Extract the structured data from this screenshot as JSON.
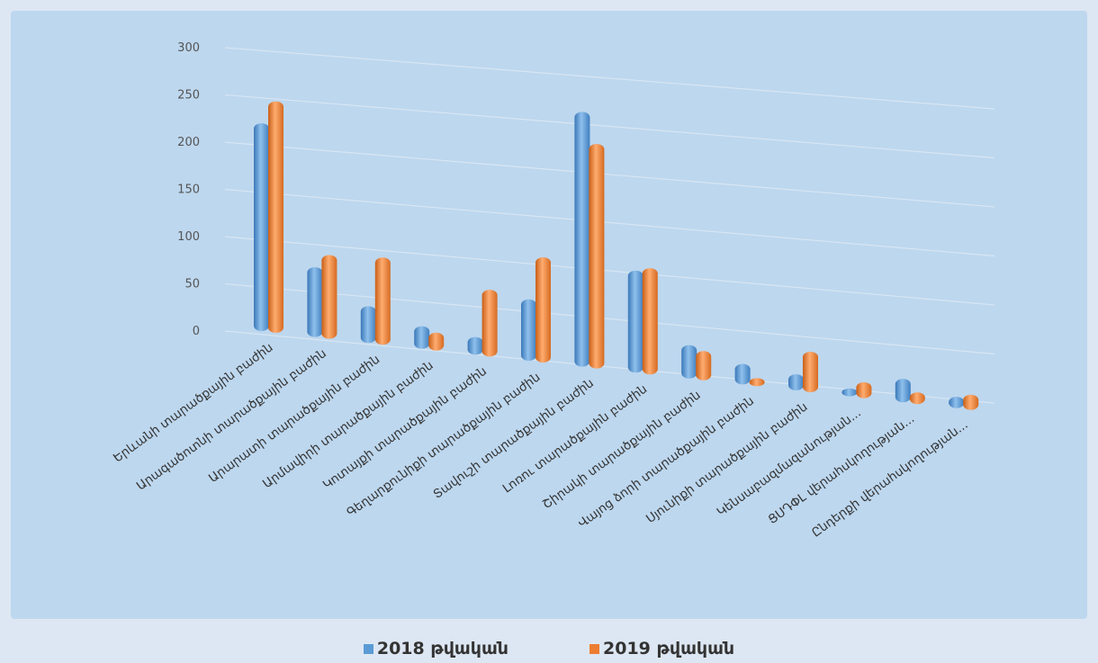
{
  "chart_data": {
    "type": "bar",
    "categories": [
      "Երևանի տարածքային բաժին",
      "Արագածոտնի տարածքային բաժին",
      "Արարատի տարածքային բաժին",
      "Արմավիրի տարածքային բաժին",
      "Կոտայքի տարածքային բաժին",
      "Գեղարքունիքի տարածքային բաժին",
      "Տավուշի տարածքային բաժին",
      "Լոռու տարածքային բաժին",
      "Շիրակի տարածքային բաժին",
      "Վայոց ձորի տարածքային բաժին",
      "Սյունիքի տարածքային բաժին",
      "Կենսաբազմազանության...",
      "ՑՍԴՓԼ վերահսկողության...",
      "Ընդերքի վերահսկողության..."
    ],
    "series": [
      {
        "name": "2018 թվական",
        "color": "#5b9bd5",
        "values": [
          220,
          75,
          40,
          25,
          20,
          70,
          295,
          120,
          40,
          25,
          20,
          10,
          30,
          15
        ]
      },
      {
        "name": "2019 թվական",
        "color": "#ed7d31",
        "values": [
          245,
          90,
          95,
          20,
          75,
          120,
          260,
          125,
          35,
          10,
          50,
          20,
          15,
          20
        ]
      }
    ],
    "y_ticks": [
      "0",
      "50",
      "100",
      "150",
      "200",
      "250",
      "300"
    ],
    "ylim": [
      0,
      300
    ],
    "legend_position": "bottom",
    "grid": true
  }
}
